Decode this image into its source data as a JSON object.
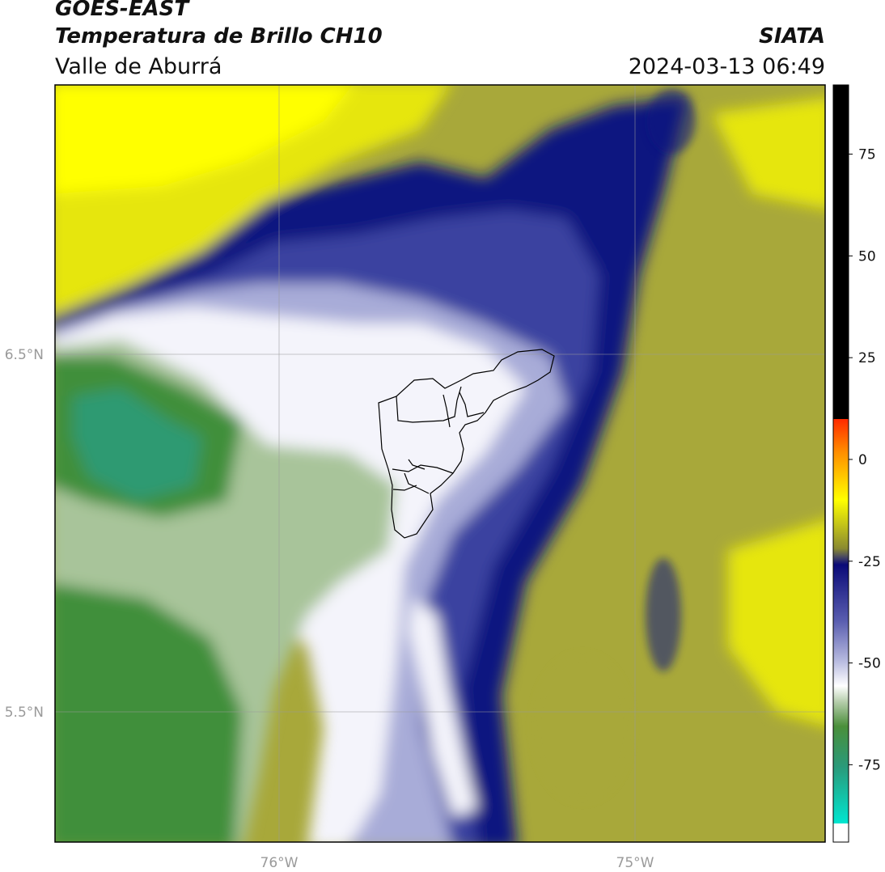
{
  "title": {
    "satellite": "GOES-EAST",
    "product": "Temperatura de Brillo CH10",
    "region": "Valle de Aburrá",
    "agency": "SIATA",
    "datetime": "2024-03-13 06:49"
  },
  "axes": {
    "lat_ticks": [
      {
        "value": 6.5,
        "label": "6.5°N"
      },
      {
        "value": 5.5,
        "label": "5.5°N"
      }
    ],
    "lon_ticks": [
      {
        "value": -76,
        "label": "76°W"
      },
      {
        "value": -75,
        "label": "75°W"
      }
    ],
    "lon_range": [
      -76.625,
      -74.465
    ],
    "lat_range": [
      5.135,
      7.25
    ],
    "gridlines": true
  },
  "colorbar": {
    "range": [
      -94,
      92
    ],
    "ticks": [
      75,
      50,
      25,
      0,
      -25,
      -50,
      -75
    ],
    "colors": {
      "black": "#000000",
      "red": "#ff2a00",
      "orange": "#ff8c00",
      "yellow": "#ffff00",
      "olive": "#8a8a30",
      "navy": "#0a0a78",
      "lavender": "#b9bce0",
      "white": "#ffffff",
      "green": "#4a8f3a",
      "teal": "#2a9a7a",
      "cyan": "#00e6d0"
    }
  },
  "map_colors": {
    "background": "#a8a83a",
    "yellow": "#e6e60f",
    "bright_yellow": "#ffff00",
    "navy": "#0d1380",
    "blue": "#3a42a0",
    "lavender": "#a8acd8",
    "white": "#f4f4fb",
    "light_green": "#a8c49a",
    "green": "#3f8f3a",
    "teal": "#2f9a72",
    "grid": "#9a9a9a",
    "boundary": "#000000"
  }
}
